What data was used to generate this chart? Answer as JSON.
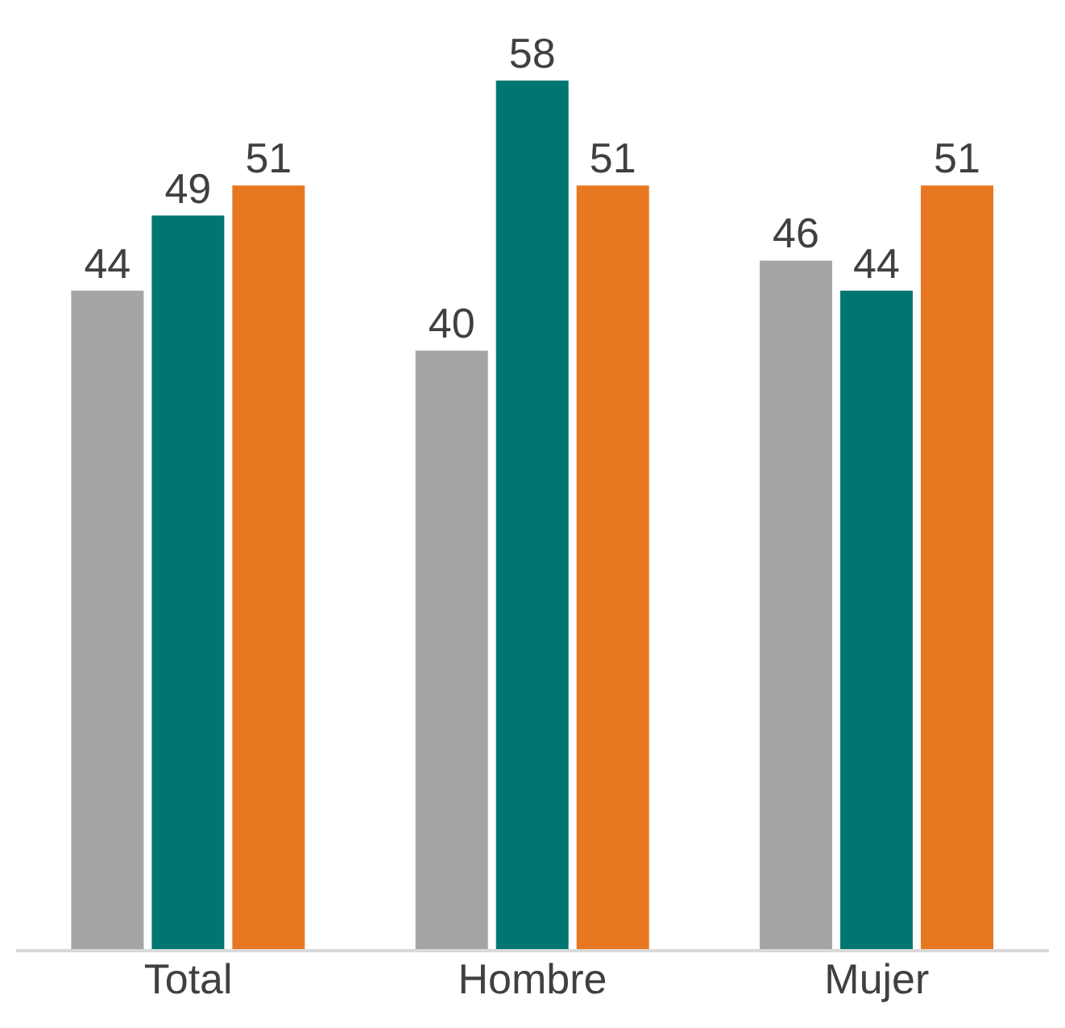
{
  "chart_data": {
    "type": "bar",
    "categories": [
      "Total",
      "Hombre",
      "Mujer"
    ],
    "series": [
      {
        "color": "#a5a5a5",
        "values": [
          44,
          40,
          46
        ]
      },
      {
        "color": "#007672",
        "values": [
          49,
          58,
          44
        ]
      },
      {
        "color": "#e87722",
        "values": [
          51,
          51,
          51
        ]
      }
    ],
    "ylim": [
      0,
      58
    ],
    "data_labels": true,
    "tick_labels": "x"
  }
}
